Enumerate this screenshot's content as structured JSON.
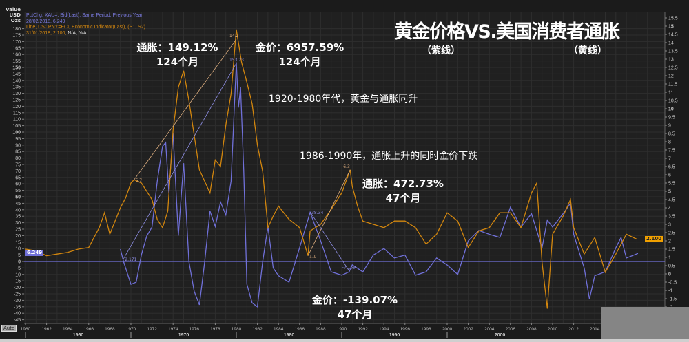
{
  "title": "黄金价格VS.美国消费者通胀",
  "subtitle_gold": "（紫线）",
  "subtitle_cpi": "（黄线）",
  "axis_header": [
    "Value",
    "USD",
    "Ozs"
  ],
  "legend": {
    "gold_line1": "PctChg, XAU=, Bid(Last), Same Period, Previous Year",
    "gold_line2": "28/02/2018, 6.249",
    "cpi_line1": "Line, USCPNY=ECI, Economic Indicator(Last), (S1, S2)",
    "cpi_line2": "31/01/2018, 2.100,",
    "cpi_line2_na": " N/A, N/A"
  },
  "badges": {
    "gold_last": "6.249",
    "cpi_last": "2.100"
  },
  "auto_button": "Auto",
  "annotations": {
    "a1_l1": "通胀：149.12%",
    "a1_l2": "124个月",
    "a2_l1": "金价：6957.59%",
    "a2_l2": "124个月",
    "note1": "1920-1980年代，黄金与通胀同升",
    "note2": "1986-1990年，通胀上升的同时金价下跌",
    "a3_l1": "通胀：472.73%",
    "a3_l2": "47个月",
    "a4_l1": "金价：-139.07%",
    "a4_l2": "47个月"
  },
  "colors": {
    "gold": "#7070d8",
    "cpi": "#d2860e",
    "background": "#1b1b1b",
    "grid": "#2e2e2e"
  },
  "chart_data": {
    "type": "line",
    "xlim": [
      1960,
      2019.5
    ],
    "x_ticks_minor": [
      "1960",
      "1962",
      "1964",
      "1966",
      "1968",
      "1970",
      "1972",
      "1974",
      "1976",
      "1978",
      "1980",
      "1982",
      "1984",
      "1986",
      "1988",
      "1990",
      "1992",
      "1994",
      "1996",
      "1998",
      "2000",
      "2002",
      "2004",
      "2006",
      "2008",
      "2010",
      "2012",
      "2014"
    ],
    "x_ticks_major": [
      "1960",
      "1970",
      "1980",
      "1990",
      "2000"
    ],
    "left_axis": {
      "ylim": [
        -45,
        180
      ],
      "step": 5
    },
    "right_axis": {
      "ylim": [
        -3,
        15.5
      ],
      "step": 0.5
    },
    "grid": true,
    "series": [
      {
        "key": "gold",
        "axis": "left",
        "points": [
          [
            1969,
            9.6
          ],
          [
            1969.3,
            0
          ],
          [
            1970,
            -17.6
          ],
          [
            1970.5,
            -16
          ],
          [
            1971,
            5.3
          ],
          [
            1971.5,
            19.7
          ],
          [
            1972,
            26.6
          ],
          [
            1972.5,
            62
          ],
          [
            1973,
            89
          ],
          [
            1973.3,
            92
          ],
          [
            1973.6,
            53
          ],
          [
            1974,
            99
          ],
          [
            1974.5,
            20
          ],
          [
            1975,
            76
          ],
          [
            1975.5,
            0
          ],
          [
            1976,
            -23
          ],
          [
            1976.5,
            -33.5
          ],
          [
            1977,
            0
          ],
          [
            1977.5,
            39
          ],
          [
            1978,
            27
          ],
          [
            1978.5,
            46
          ],
          [
            1979,
            36
          ],
          [
            1979.5,
            62
          ],
          [
            1980,
            154
          ],
          [
            1980.2,
            119
          ],
          [
            1980.4,
            135
          ],
          [
            1980.7,
            71
          ],
          [
            1981,
            -17.5
          ],
          [
            1981.5,
            -32
          ],
          [
            1982,
            -35
          ],
          [
            1982.5,
            0
          ],
          [
            1983,
            27
          ],
          [
            1983.5,
            -5
          ],
          [
            1984,
            -11
          ],
          [
            1985,
            -16
          ],
          [
            1986,
            10.6
          ],
          [
            1987,
            38
          ],
          [
            1988,
            16
          ],
          [
            1989,
            -8
          ],
          [
            1990,
            -10.6
          ],
          [
            1990.7,
            -8
          ],
          [
            1991,
            -2.6
          ],
          [
            1992,
            -8
          ],
          [
            1993,
            5
          ],
          [
            1994,
            10
          ],
          [
            1995,
            2.7
          ],
          [
            1996,
            5
          ],
          [
            1997,
            -10.6
          ],
          [
            1998,
            -8
          ],
          [
            1999,
            2.7
          ],
          [
            2000,
            -2.7
          ],
          [
            2001,
            -10
          ],
          [
            2002,
            16
          ],
          [
            2003,
            24
          ],
          [
            2004,
            21
          ],
          [
            2005,
            18.6
          ],
          [
            2006,
            42
          ],
          [
            2007,
            26.6
          ],
          [
            2008,
            37
          ],
          [
            2009,
            10.6
          ],
          [
            2009.5,
            32
          ],
          [
            2010,
            26.6
          ],
          [
            2011,
            37
          ],
          [
            2011.7,
            45
          ],
          [
            2012,
            21
          ],
          [
            2013,
            -5
          ],
          [
            2013.5,
            -29
          ],
          [
            2014,
            -11
          ],
          [
            2015,
            -8
          ],
          [
            2016,
            10.6
          ],
          [
            2016.5,
            18.6
          ],
          [
            2017,
            2.7
          ],
          [
            2018.1,
            6.249
          ]
        ]
      },
      {
        "key": "cpi",
        "axis": "right",
        "points": [
          [
            1960,
            1.5
          ],
          [
            1961,
            1.4
          ],
          [
            1962,
            1.1
          ],
          [
            1963,
            1.2
          ],
          [
            1964,
            1.3
          ],
          [
            1965,
            1.5
          ],
          [
            1966,
            1.6
          ],
          [
            1967,
            2.8
          ],
          [
            1967.5,
            3.7
          ],
          [
            1968,
            2.4
          ],
          [
            1969,
            4.0
          ],
          [
            1969.5,
            4.6
          ],
          [
            1970,
            5.5
          ],
          [
            1970.3,
            5.7
          ],
          [
            1971,
            5.5
          ],
          [
            1972,
            4.5
          ],
          [
            1972.5,
            3.3
          ],
          [
            1973,
            2.8
          ],
          [
            1973.5,
            3.8
          ],
          [
            1974,
            8.7
          ],
          [
            1974.5,
            11.3
          ],
          [
            1975,
            12.3
          ],
          [
            1975.5,
            10.5
          ],
          [
            1976,
            8.4
          ],
          [
            1976.5,
            6.3
          ],
          [
            1977,
            5.6
          ],
          [
            1977.5,
            4.9
          ],
          [
            1978,
            6.9
          ],
          [
            1978.5,
            6.5
          ],
          [
            1979,
            9.0
          ],
          [
            1979.5,
            10.9
          ],
          [
            1980,
            14.8
          ],
          [
            1980.5,
            12.8
          ],
          [
            1981,
            11.6
          ],
          [
            1981.5,
            10.3
          ],
          [
            1982,
            7.8
          ],
          [
            1982.5,
            6.2
          ],
          [
            1983,
            2.8
          ],
          [
            1983.5,
            3.5
          ],
          [
            1984,
            4.1
          ],
          [
            1985,
            3.3
          ],
          [
            1986,
            2.8
          ],
          [
            1986.8,
            1.1
          ],
          [
            1987,
            2.6
          ],
          [
            1988,
            3.0
          ],
          [
            1989,
            3.9
          ],
          [
            1990,
            4.9
          ],
          [
            1990.8,
            6.3
          ],
          [
            1991,
            5.3
          ],
          [
            1991.5,
            4.1
          ],
          [
            1992,
            3.2
          ],
          [
            1993,
            3.0
          ],
          [
            1994,
            2.8
          ],
          [
            1995,
            3.2
          ],
          [
            1996,
            3.2
          ],
          [
            1997,
            2.8
          ],
          [
            1998,
            1.8
          ],
          [
            1999,
            2.4
          ],
          [
            2000,
            3.7
          ],
          [
            2001,
            3.2
          ],
          [
            2002,
            1.6
          ],
          [
            2003,
            2.6
          ],
          [
            2004,
            2.8
          ],
          [
            2005,
            3.7
          ],
          [
            2006,
            3.7
          ],
          [
            2007,
            2.8
          ],
          [
            2008,
            4.9
          ],
          [
            2008.5,
            5.5
          ],
          [
            2009,
            0.7
          ],
          [
            2009.5,
            -2.1
          ],
          [
            2010,
            2.4
          ],
          [
            2011,
            3.5
          ],
          [
            2011.7,
            4.5
          ],
          [
            2012,
            2.8
          ],
          [
            2013,
            1.2
          ],
          [
            2014,
            2.2
          ],
          [
            2015,
            0.1
          ],
          [
            2016,
            1.2
          ],
          [
            2017,
            2.4
          ],
          [
            2018,
            2.1
          ]
        ]
      }
    ],
    "trend_lines": [
      {
        "key": "cpi",
        "axis": "right",
        "from": [
          1970.3,
          5.7
        ],
        "to": [
          1980,
          14.2
        ],
        "from_label": "5.7",
        "to_label": "14.2"
      },
      {
        "key": "gold",
        "axis": "left",
        "from": [
          1969.3,
          2.171
        ],
        "to": [
          1980,
          153.23
        ],
        "from_label": "2.171",
        "to_label": "153.23"
      },
      {
        "key": "cpi",
        "axis": "right",
        "from": [
          1986.8,
          1.1
        ],
        "to": [
          1990.8,
          6.3
        ],
        "from_label": "1.1",
        "to_label": "6.3"
      },
      {
        "key": "gold",
        "axis": "left",
        "from": [
          1987,
          38.34
        ],
        "to": [
          1990.7,
          -7.169
        ],
        "from_label": "38.34",
        "to_label": "-7.169"
      }
    ]
  }
}
